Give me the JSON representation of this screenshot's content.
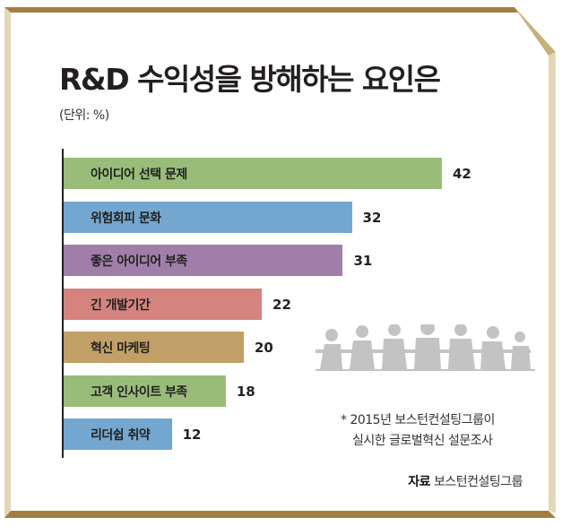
{
  "title": "R&D 수익성을 방해하는 요인은",
  "unit": "(단위: %)",
  "note": {
    "line1": "* 2015년 보스턴컨설팅그룹이",
    "line2": "실시한 글로벌혁신 설문조사"
  },
  "source": {
    "label": "자료",
    "text": "보스턴컨설팅그룹"
  },
  "colors": {
    "frame_dark": "#a27f3f",
    "frame_light": "#e3d7b8",
    "silhouette": "#c3c3c3"
  },
  "chart_data": {
    "type": "bar",
    "orientation": "horizontal",
    "title": "R&D 수익성을 방해하는 요인은",
    "ylabel": "(단위: %)",
    "categories": [
      "아이디어 선택 문제",
      "위험회피 문화",
      "좋은 아이디어 부족",
      "긴 개발기간",
      "혁신 마케팅",
      "고객 인사이트 부족",
      "리더쉽 취약"
    ],
    "values": [
      42,
      32,
      31,
      22,
      20,
      18,
      12
    ],
    "labels": [
      "42",
      "32",
      "31",
      "22",
      "20",
      "18",
      "12"
    ],
    "bar_colors": [
      "#99bd79",
      "#74a7cf",
      "#a17ea9",
      "#d4837f",
      "#c1a067",
      "#99bd79",
      "#74a7cf"
    ],
    "xlim": [
      0,
      45
    ],
    "grid": false
  }
}
